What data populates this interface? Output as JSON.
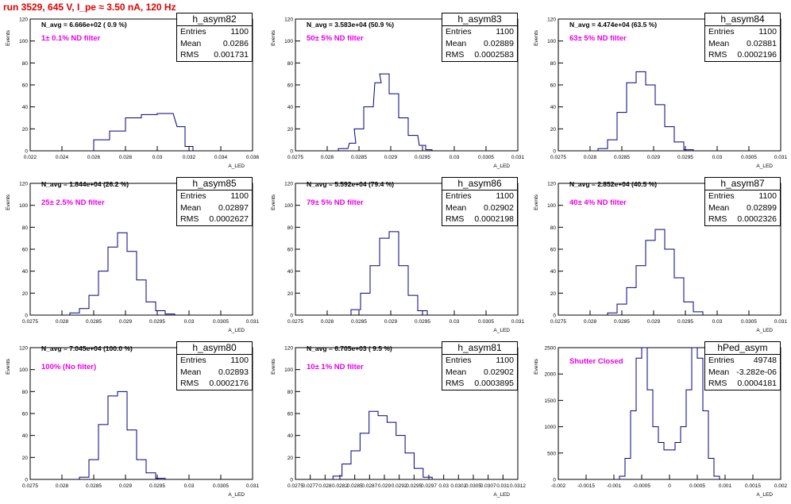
{
  "title": "run 3529,   645 V, I_pe ≈ 3.50 nA, 120 Hz",
  "colors": {
    "title": "#e00000",
    "hist": "#000080",
    "annotation": "#e800e8",
    "axis": "#000000"
  },
  "stat_labels": {
    "entries": "Entries",
    "mean": "Mean",
    "rms": "RMS"
  },
  "chart_data": [
    {
      "type": "histogram",
      "name": "h_asym82",
      "ylabel": "Events",
      "xlabel": "A_LED",
      "xlim": [
        0.022,
        0.036
      ],
      "ylim": [
        0,
        120
      ],
      "xticks": [
        "0.022",
        "0.024",
        "0.026",
        "0.028",
        "0.03",
        "0.032",
        "0.034",
        "0.036"
      ],
      "yticks": [
        "0",
        "20",
        "40",
        "60",
        "80",
        "100",
        "120"
      ],
      "n_avg": "N_avg = 6.666e+02 ( 0.9 %)",
      "filter": "1± 0.1% ND filter",
      "stats": {
        "entries": "1100",
        "mean": "0.0286",
        "rms": "0.001731"
      },
      "x": [
        0.0265,
        0.0275,
        0.0285,
        0.0295,
        0.0305,
        0.0315,
        0.032
      ],
      "values": [
        10,
        18,
        30,
        33,
        34,
        22,
        4
      ]
    },
    {
      "type": "histogram",
      "name": "h_asym83",
      "ylabel": "Events",
      "xlabel": "A_LED",
      "xlim": [
        0.0275,
        0.031
      ],
      "ylim": [
        0,
        120
      ],
      "xticks": [
        "0.0275",
        "0.028",
        "0.0285",
        "0.029",
        "0.0295",
        "0.03",
        "0.0305",
        "0.031"
      ],
      "yticks": [
        "0",
        "20",
        "40",
        "60",
        "80",
        "100",
        "120"
      ],
      "n_avg": "N_avg = 3.583e+04 (50.9 %)",
      "filter": "50± 5% ND filter",
      "stats": {
        "entries": "1100",
        "mean": "0.02889",
        "rms": "0.0002583"
      },
      "x": [
        0.02825,
        0.0284,
        0.0285,
        0.02865,
        0.0288,
        0.0289,
        0.02905,
        0.0292,
        0.02935,
        0.0295,
        0.0296
      ],
      "values": [
        2,
        7,
        20,
        40,
        62,
        70,
        52,
        30,
        14,
        5,
        1
      ]
    },
    {
      "type": "histogram",
      "name": "h_asym84",
      "ylabel": "Events",
      "xlabel": "A_LED",
      "xlim": [
        0.0275,
        0.031
      ],
      "ylim": [
        0,
        120
      ],
      "xticks": [
        "0.0275",
        "0.028",
        "0.0285",
        "0.029",
        "0.0295",
        "0.03",
        "0.0305",
        "0.031"
      ],
      "yticks": [
        "0",
        "20",
        "40",
        "60",
        "80",
        "100",
        "120"
      ],
      "n_avg": "N_avg = 4.474e+04 (63.5 %)",
      "filter": "63± 5% ND filter",
      "stats": {
        "entries": "1100",
        "mean": "0.02881",
        "rms": "0.0002196"
      },
      "x": [
        0.0282,
        0.02835,
        0.0285,
        0.02865,
        0.0288,
        0.02895,
        0.0291,
        0.02925,
        0.0294,
        0.02955
      ],
      "values": [
        2,
        10,
        35,
        62,
        72,
        60,
        42,
        22,
        8,
        1
      ]
    },
    {
      "type": "histogram",
      "name": "h_asym85",
      "ylabel": "Events",
      "xlabel": "A_LED",
      "xlim": [
        0.0275,
        0.031
      ],
      "ylim": [
        0,
        120
      ],
      "xticks": [
        "0.0275",
        "0.028",
        "0.0285",
        "0.029",
        "0.0295",
        "0.03",
        "0.0305",
        "0.031"
      ],
      "yticks": [
        "0",
        "20",
        "40",
        "60",
        "80",
        "100",
        "120"
      ],
      "n_avg": "N_avg = 1.844e+04 (26.2 %)",
      "filter": "25± 2.5% ND filter",
      "stats": {
        "entries": "1100",
        "mean": "0.02897",
        "rms": "0.0002627"
      },
      "x": [
        0.0282,
        0.02835,
        0.0285,
        0.02865,
        0.0288,
        0.02895,
        0.0291,
        0.02925,
        0.0294,
        0.02955,
        0.0297
      ],
      "values": [
        2,
        6,
        18,
        40,
        62,
        75,
        58,
        32,
        12,
        4,
        1
      ]
    },
    {
      "type": "histogram",
      "name": "h_asym86",
      "ylabel": "Events",
      "xlabel": "A_LED",
      "xlim": [
        0.0275,
        0.031
      ],
      "ylim": [
        0,
        120
      ],
      "xticks": [
        "0.0275",
        "0.028",
        "0.0285",
        "0.029",
        "0.0295",
        "0.03",
        "0.0305",
        "0.031"
      ],
      "yticks": [
        "0",
        "20",
        "40",
        "60",
        "80",
        "100",
        "120"
      ],
      "n_avg": "N_avg = 5.592e+04 (79.4 %)",
      "filter": "79± 5% ND filter",
      "stats": {
        "entries": "1100",
        "mean": "0.02902",
        "rms": "0.0002198"
      },
      "x": [
        0.02845,
        0.0286,
        0.02875,
        0.0289,
        0.02905,
        0.0292,
        0.02935,
        0.0295
      ],
      "values": [
        5,
        20,
        45,
        70,
        76,
        45,
        18,
        4
      ]
    },
    {
      "type": "histogram",
      "name": "h_asym87",
      "ylabel": "Events",
      "xlabel": "A_LED",
      "xlim": [
        0.0275,
        0.031
      ],
      "ylim": [
        0,
        120
      ],
      "xticks": [
        "0.0275",
        "0.028",
        "0.0285",
        "0.029",
        "0.0295",
        "0.03",
        "0.0305",
        "0.031"
      ],
      "yticks": [
        "0",
        "20",
        "40",
        "60",
        "80",
        "100",
        "120"
      ],
      "n_avg": "N_avg = 2.852e+04 (40.5 %)",
      "filter": "40± 4% ND filter",
      "stats": {
        "entries": "1100",
        "mean": "0.02899",
        "rms": "0.0002326"
      },
      "x": [
        0.02835,
        0.0285,
        0.02865,
        0.0288,
        0.02895,
        0.0291,
        0.02925,
        0.0294,
        0.02955,
        0.0297
      ],
      "values": [
        2,
        10,
        25,
        45,
        68,
        78,
        60,
        34,
        12,
        3
      ]
    },
    {
      "type": "histogram",
      "name": "h_asym80",
      "ylabel": "Events",
      "xlabel": "A_LED",
      "xlim": [
        0.0275,
        0.031
      ],
      "ylim": [
        0,
        120
      ],
      "xticks": [
        "0.0275",
        "0.028",
        "0.0285",
        "0.029",
        "0.0295",
        "0.03",
        "0.0305",
        "0.031"
      ],
      "yticks": [
        "0",
        "20",
        "40",
        "60",
        "80",
        "100",
        "120"
      ],
      "n_avg": "N_avg = 7.045e+04 (100.0 %)",
      "filter": "100% (No filter)",
      "stats": {
        "entries": "1100",
        "mean": "0.02893",
        "rms": "0.0002176"
      },
      "x": [
        0.02835,
        0.0285,
        0.02865,
        0.0288,
        0.02895,
        0.0291,
        0.02925,
        0.0294,
        0.02955
      ],
      "values": [
        2,
        18,
        50,
        76,
        80,
        45,
        18,
        6,
        1
      ]
    },
    {
      "type": "histogram",
      "name": "h_asym81",
      "ylabel": "Events",
      "xlabel": "A_LED",
      "xlim": [
        0.0275,
        0.0312
      ],
      "ylim": [
        0,
        120
      ],
      "xticks": [
        "0.0275",
        "0.0277",
        "0.028",
        "0.0282",
        "0.0285",
        "0.0287",
        "0.029",
        "0.0292",
        "0.0295",
        "0.0297",
        "0.03",
        "0.0302",
        "0.0305",
        "0.0307",
        "0.031",
        "0.0312"
      ],
      "yticks": [
        "0",
        "20",
        "40",
        "60",
        "80",
        "100",
        "120"
      ],
      "n_avg": "N_avg = 6.705e+03 ( 9.5 %)",
      "filter": "10± 1% ND filter",
      "stats": {
        "entries": "1100",
        "mean": "0.02902",
        "rms": "0.0003895"
      },
      "x": [
        0.0282,
        0.02835,
        0.0285,
        0.02865,
        0.0288,
        0.02895,
        0.0291,
        0.02925,
        0.0294,
        0.02955,
        0.0297
      ],
      "values": [
        3,
        14,
        26,
        42,
        62,
        58,
        52,
        40,
        24,
        10,
        2
      ]
    },
    {
      "type": "histogram",
      "name": "hPed_asym",
      "ylabel": "Events",
      "xlabel": "A_LED",
      "xlim": [
        -0.002,
        0.002
      ],
      "ylim": [
        0,
        2500
      ],
      "xticks": [
        "-0.002",
        "-0.0015",
        "-0.001",
        "-0.0005",
        "0",
        "0.0005",
        "0.001",
        "0.0015",
        "0.002"
      ],
      "yticks": [
        "0",
        "500",
        "1000",
        "1500",
        "2000",
        "2500"
      ],
      "n_avg": "",
      "filter": "Shutter Closed",
      "stats": {
        "entries": "49748",
        "mean": "-3.282e-06",
        "rms": "0.0004181"
      },
      "x": [
        -0.00085,
        -0.00075,
        -0.00065,
        -0.00055,
        -0.00045,
        -0.00035,
        -0.00025,
        -0.00015,
        -5e-05,
        5e-05,
        0.00015,
        0.00025,
        0.00035,
        0.00045,
        0.00055,
        0.00065,
        0.00075,
        0.00085
      ],
      "values": [
        60,
        400,
        1300,
        2300,
        2500,
        1700,
        1000,
        700,
        560,
        560,
        700,
        1000,
        1700,
        2500,
        2300,
        1300,
        400,
        60
      ]
    }
  ]
}
